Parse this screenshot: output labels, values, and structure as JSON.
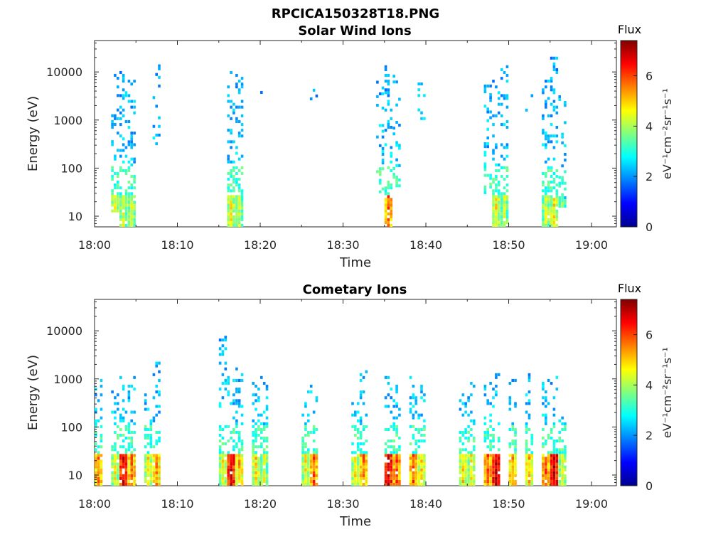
{
  "figure": {
    "title": "RPCICA150328T18.PNG"
  },
  "colormap": [
    "#00008f",
    "#0000ff",
    "#0080ff",
    "#00ffff",
    "#80ff80",
    "#ffff00",
    "#ff8000",
    "#ff0000",
    "#800000"
  ],
  "chart_data": [
    {
      "type": "heatmap",
      "title": "Solar Wind Ions",
      "xlabel": "Time",
      "ylabel": "Energy (eV)",
      "yscale": "log",
      "xlim": [
        "18:00",
        "19:03"
      ],
      "ylim": [
        6,
        45000
      ],
      "x_ticks": [
        "18:00",
        "18:10",
        "18:20",
        "18:30",
        "18:40",
        "18:50",
        "19:00"
      ],
      "y_ticks": [
        10,
        100,
        1000,
        10000
      ],
      "y_tick_labels": [
        "10",
        "100",
        "1000",
        "10000"
      ],
      "colorbar": {
        "label": "Flux",
        "units": "eV⁻¹cm⁻²sr⁻¹s⁻¹",
        "range": [
          0,
          7.4
        ],
        "ticks": [
          0,
          2,
          4,
          6
        ]
      },
      "bursts": [
        {
          "time": "18:02",
          "low_flux": 4.6,
          "e_min": 12,
          "e_max": 9000
        },
        {
          "time": "18:03",
          "low_flux": 4.3,
          "e_min": 6,
          "e_max": 10000
        },
        {
          "time": "18:04",
          "low_flux": 4.3,
          "e_min": 6,
          "e_max": 10000
        },
        {
          "time": "18:07",
          "low_flux": 0,
          "e_min": 300,
          "e_max": 14000
        },
        {
          "time": "18:16",
          "low_flux": 4.6,
          "e_min": 6,
          "e_max": 13000
        },
        {
          "time": "18:17",
          "low_flux": 4.2,
          "e_min": 6,
          "e_max": 8000
        },
        {
          "time": "18:20",
          "low_flux": 0,
          "e_min": 3500,
          "e_max": 4000
        },
        {
          "time": "18:26",
          "low_flux": 0,
          "e_min": 1700,
          "e_max": 4500
        },
        {
          "time": "18:34",
          "low_flux": 4.0,
          "e_min": 30,
          "e_max": 8000
        },
        {
          "time": "18:35",
          "low_flux": 5.8,
          "e_min": 6,
          "e_max": 12000
        },
        {
          "time": "18:36",
          "low_flux": 4.0,
          "e_min": 40,
          "e_max": 9000
        },
        {
          "time": "18:39",
          "low_flux": 0,
          "e_min": 1000,
          "e_max": 6000
        },
        {
          "time": "18:47",
          "low_flux": 4.0,
          "e_min": 25,
          "e_max": 5000
        },
        {
          "time": "18:48",
          "low_flux": 4.7,
          "e_min": 6,
          "e_max": 8000
        },
        {
          "time": "18:49",
          "low_flux": 4.2,
          "e_min": 6,
          "e_max": 14000
        },
        {
          "time": "18:52",
          "low_flux": 0,
          "e_min": 1500,
          "e_max": 6000
        },
        {
          "time": "18:54",
          "low_flux": 4.3,
          "e_min": 6,
          "e_max": 10000
        },
        {
          "time": "18:55",
          "low_flux": 4.7,
          "e_min": 6,
          "e_max": 22000
        },
        {
          "time": "18:56",
          "low_flux": 3.6,
          "e_min": 15,
          "e_max": 3000
        }
      ]
    },
    {
      "type": "heatmap",
      "title": "Cometary Ions",
      "xlabel": "Time",
      "ylabel": "Energy (eV)",
      "yscale": "log",
      "xlim": [
        "18:00",
        "19:03"
      ],
      "ylim": [
        6,
        45000
      ],
      "x_ticks": [
        "18:00",
        "18:10",
        "18:20",
        "18:30",
        "18:40",
        "18:50",
        "19:00"
      ],
      "y_ticks": [
        10,
        100,
        1000,
        10000
      ],
      "y_tick_labels": [
        "10",
        "100",
        "1000",
        "10000"
      ],
      "colorbar": {
        "label": "Flux",
        "units": "eV⁻¹cm⁻²sr⁻¹s⁻¹",
        "range": [
          0,
          7.4
        ],
        "ticks": [
          0,
          2,
          4,
          6
        ]
      },
      "bursts": [
        {
          "time": "18:00",
          "low_flux": 5.6,
          "e_min": 6,
          "e_max": 1200
        },
        {
          "time": "18:02",
          "low_flux": 4.5,
          "e_min": 6,
          "e_max": 800
        },
        {
          "time": "18:03",
          "low_flux": 6.8,
          "e_min": 6,
          "e_max": 1200
        },
        {
          "time": "18:04",
          "low_flux": 5.6,
          "e_min": 6,
          "e_max": 1300
        },
        {
          "time": "18:06",
          "low_flux": 4.8,
          "e_min": 6,
          "e_max": 600
        },
        {
          "time": "18:07",
          "low_flux": 5.3,
          "e_min": 6,
          "e_max": 2200
        },
        {
          "time": "18:15",
          "low_flux": 4.6,
          "e_min": 6,
          "e_max": 7000
        },
        {
          "time": "18:16",
          "low_flux": 6.8,
          "e_min": 6,
          "e_max": 1000
        },
        {
          "time": "18:17",
          "low_flux": 5.2,
          "e_min": 6,
          "e_max": 1700
        },
        {
          "time": "18:19",
          "low_flux": 4.8,
          "e_min": 6,
          "e_max": 800
        },
        {
          "time": "18:20",
          "low_flux": 4.3,
          "e_min": 6,
          "e_max": 1400
        },
        {
          "time": "18:25",
          "low_flux": 4.6,
          "e_min": 6,
          "e_max": 500
        },
        {
          "time": "18:26",
          "low_flux": 5.8,
          "e_min": 6,
          "e_max": 700
        },
        {
          "time": "18:31",
          "low_flux": 4.6,
          "e_min": 6,
          "e_max": 350
        },
        {
          "time": "18:32",
          "low_flux": 5.6,
          "e_min": 6,
          "e_max": 1400
        },
        {
          "time": "18:35",
          "low_flux": 6.9,
          "e_min": 6,
          "e_max": 1000
        },
        {
          "time": "18:36",
          "low_flux": 5.9,
          "e_min": 6,
          "e_max": 900
        },
        {
          "time": "18:38",
          "low_flux": 5.8,
          "e_min": 6,
          "e_max": 1000
        },
        {
          "time": "18:39",
          "low_flux": 5.0,
          "e_min": 6,
          "e_max": 800
        },
        {
          "time": "18:44",
          "low_flux": 4.8,
          "e_min": 6,
          "e_max": 500
        },
        {
          "time": "18:45",
          "low_flux": 4.6,
          "e_min": 6,
          "e_max": 1000
        },
        {
          "time": "18:47",
          "low_flux": 5.8,
          "e_min": 6,
          "e_max": 800
        },
        {
          "time": "18:48",
          "low_flux": 6.9,
          "e_min": 6,
          "e_max": 1600
        },
        {
          "time": "18:50",
          "low_flux": 5.4,
          "e_min": 6,
          "e_max": 900
        },
        {
          "time": "18:52",
          "low_flux": 5.1,
          "e_min": 6,
          "e_max": 1400
        },
        {
          "time": "18:54",
          "low_flux": 5.8,
          "e_min": 6,
          "e_max": 900
        },
        {
          "time": "18:55",
          "low_flux": 6.9,
          "e_min": 6,
          "e_max": 1000
        },
        {
          "time": "18:56",
          "low_flux": 4.4,
          "e_min": 6,
          "e_max": 150
        }
      ]
    }
  ]
}
